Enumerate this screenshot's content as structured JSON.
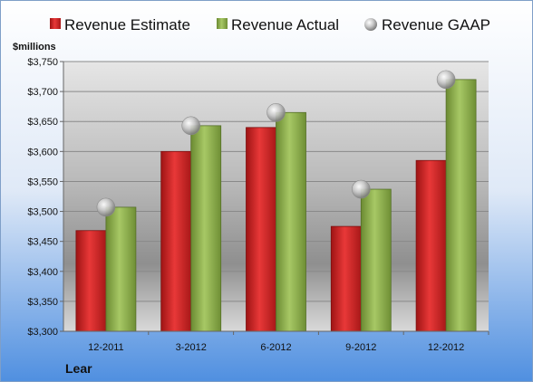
{
  "chart_data": {
    "type": "bar",
    "categories": [
      "12-2011",
      "3-2012",
      "6-2012",
      "9-2012",
      "12-2012"
    ],
    "series": [
      {
        "name": "Revenue Estimate",
        "values": [
          3468,
          3600,
          3640,
          3475,
          3585
        ],
        "color": "#d42a2a"
      },
      {
        "name": "Revenue Actual",
        "values": [
          3507,
          3643,
          3665,
          3537,
          3720
        ],
        "color": "#8db04a"
      }
    ],
    "markers": {
      "name": "Revenue GAAP",
      "values": [
        3507,
        3643,
        3665,
        3537,
        3720
      ],
      "color": "#c8c8c8"
    },
    "ylabel": "$millions",
    "ylim": [
      3300,
      3750
    ],
    "yticks": [
      3300,
      3350,
      3400,
      3450,
      3500,
      3550,
      3600,
      3650,
      3700,
      3750
    ],
    "ytick_labels": [
      "$3,300",
      "$3,350",
      "$3,400",
      "$3,450",
      "$3,500",
      "$3,550",
      "$3,600",
      "$3,650",
      "$3,700",
      "$3,750"
    ],
    "company": "Lear",
    "grid": true,
    "legend": "top"
  }
}
